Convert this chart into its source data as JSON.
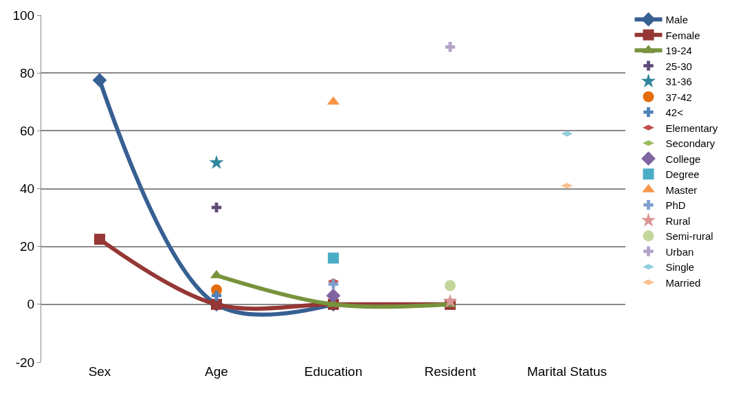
{
  "chart_data": {
    "type": "line",
    "categories": [
      "Sex",
      "Age",
      "Education",
      "Resident",
      "Marital Status"
    ],
    "ylim": [
      -20,
      100
    ],
    "yticks": [
      -20,
      0,
      20,
      40,
      60,
      80,
      100
    ],
    "grid": "y",
    "legend": "right",
    "series": [
      {
        "name": "Male",
        "color": "#376092",
        "type": "line",
        "marker": "diamond",
        "values": [
          77.5,
          0,
          0,
          null,
          null
        ]
      },
      {
        "name": "Female",
        "color": "#953735",
        "type": "line",
        "marker": "square",
        "values": [
          22.5,
          0,
          0,
          0,
          null
        ]
      },
      {
        "name": "19-24",
        "color": "#77933c",
        "type": "line",
        "marker": "triangle",
        "values": [
          null,
          10,
          0,
          0,
          null
        ]
      },
      {
        "name": "25-30",
        "color": "#604a7b",
        "type": "scatter",
        "marker": "cross",
        "values": [
          null,
          33.5,
          null,
          null,
          null
        ]
      },
      {
        "name": "31-36",
        "color": "#31859c",
        "type": "scatter",
        "marker": "star",
        "values": [
          null,
          49,
          null,
          null,
          null
        ]
      },
      {
        "name": "37-42",
        "color": "#e46c0a",
        "type": "scatter",
        "marker": "circle",
        "values": [
          null,
          5,
          null,
          null,
          null
        ]
      },
      {
        "name": "42<",
        "color": "#4f81bd",
        "type": "scatter",
        "marker": "cross",
        "values": [
          null,
          3,
          null,
          null,
          null
        ]
      },
      {
        "name": "Elementary",
        "color": "#c0504d",
        "type": "scatter",
        "values": [
          null,
          null,
          8,
          null,
          null
        ]
      },
      {
        "name": "Secondary",
        "color": "#9bbb59",
        "type": "scatter",
        "values": [
          null,
          null,
          null,
          null,
          null
        ]
      },
      {
        "name": "College",
        "color": "#8064a2",
        "type": "scatter",
        "marker": "diamond",
        "values": [
          null,
          null,
          3,
          null,
          null
        ]
      },
      {
        "name": "Degree",
        "color": "#4bacc6",
        "type": "scatter",
        "marker": "square",
        "values": [
          null,
          null,
          16,
          null,
          null
        ]
      },
      {
        "name": "Master",
        "color": "#f79646",
        "type": "scatter",
        "marker": "triangle",
        "values": [
          null,
          null,
          70,
          null,
          null
        ]
      },
      {
        "name": "PhD",
        "color": "#7f9fcf",
        "type": "scatter",
        "marker": "cross",
        "values": [
          null,
          null,
          7,
          null,
          null
        ]
      },
      {
        "name": "Rural",
        "color": "#d99694",
        "type": "scatter",
        "marker": "star",
        "values": [
          null,
          null,
          null,
          1,
          null
        ]
      },
      {
        "name": "Semi-rural",
        "color": "#c3d69b",
        "type": "scatter",
        "marker": "circle",
        "values": [
          null,
          null,
          null,
          6.5,
          null
        ]
      },
      {
        "name": "Urban",
        "color": "#b3a2c7",
        "type": "scatter",
        "marker": "cross",
        "values": [
          null,
          null,
          null,
          89,
          null
        ]
      },
      {
        "name": "Single",
        "color": "#93cddd",
        "type": "scatter",
        "values": [
          null,
          null,
          null,
          null,
          59
        ]
      },
      {
        "name": "Married",
        "color": "#fac090",
        "type": "scatter",
        "values": [
          null,
          null,
          null,
          null,
          41
        ]
      }
    ]
  }
}
